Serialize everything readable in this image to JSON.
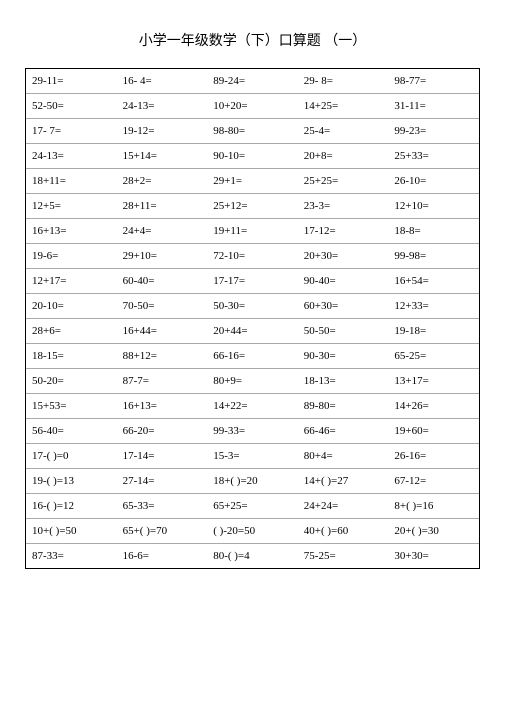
{
  "title": "小学一年级数学（下）口算题 （一）",
  "rows": [
    [
      "29-11=",
      "16- 4=",
      "89-24=",
      "29- 8=",
      "98-77="
    ],
    [
      "52-50=",
      "24-13=",
      "10+20=",
      "14+25=",
      "31-11="
    ],
    [
      "17- 7=",
      "19-12=",
      "98-80=",
      "25-4=",
      "99-23="
    ],
    [
      "24-13=",
      "15+14=",
      "90-10=",
      "20+8=",
      "25+33="
    ],
    [
      "18+11=",
      "28+2=",
      "29+1=",
      "25+25=",
      "26-10="
    ],
    [
      "12+5=",
      "28+11=",
      "25+12=",
      "23-3=",
      "12+10="
    ],
    [
      "16+13=",
      "24+4=",
      "19+11=",
      "17-12=",
      "18-8="
    ],
    [
      "19-6=",
      "29+10=",
      "72-10=",
      "20+30=",
      "99-98="
    ],
    [
      "12+17=",
      "60-40=",
      "17-17=",
      "90-40=",
      "16+54="
    ],
    [
      "20-10=",
      "70-50=",
      "50-30=",
      "60+30=",
      "12+33="
    ],
    [
      "28+6=",
      "16+44=",
      "20+44=",
      "50-50=",
      "19-18="
    ],
    [
      "18-15=",
      "88+12=",
      "66-16=",
      "90-30=",
      "65-25="
    ],
    [
      "50-20=",
      "87-7=",
      "80+9=",
      "18-13=",
      "13+17="
    ],
    [
      "15+53=",
      "16+13=",
      "14+22=",
      "89-80=",
      "14+26="
    ],
    [
      "56-40=",
      "66-20=",
      "99-33=",
      "66-46=",
      "19+60="
    ],
    [
      "17-(    )=0",
      "17-14=",
      "15-3=",
      "80+4=",
      "26-16="
    ],
    [
      "19-(    )=13",
      "27-14=",
      "18+(    )=20",
      "14+(    )=27",
      "67-12="
    ],
    [
      "16-(    )=12",
      "65-33=",
      "65+25=",
      "24+24=",
      "8+(    )=16"
    ],
    [
      "10+(    )=50",
      "65+(    )=70",
      "(    )-20=50",
      "40+(    )=60",
      "20+(    )=30"
    ],
    [
      " 87-33=",
      "16-6=",
      "80-(    )=4",
      "75-25=",
      "30+30="
    ]
  ]
}
